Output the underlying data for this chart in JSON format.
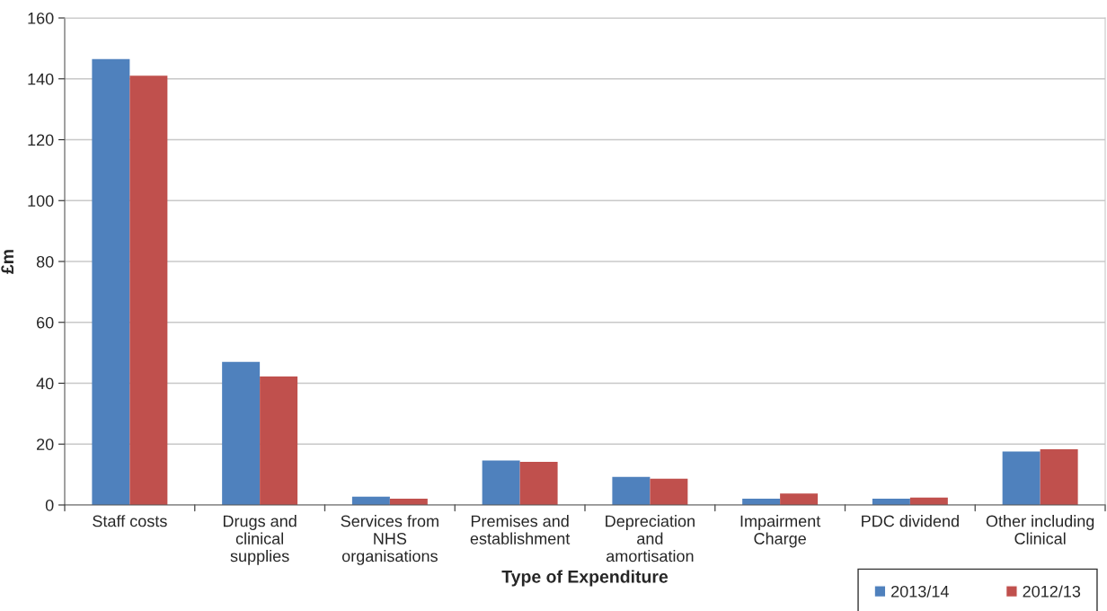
{
  "chart_data": {
    "type": "bar",
    "xlabel": "Type of Expenditure",
    "ylabel": "£m",
    "categories": [
      "Staff costs",
      "Drugs and\nclinical\nsupplies",
      "Services from\nNHS\norganisations",
      "Premises and\nestablishment",
      "Depreciation\nand\namortisation",
      "Impairment\nCharge",
      "PDC dividend",
      "Other including\nClinical"
    ],
    "series": [
      {
        "name": "2013/14",
        "color": "#4f81bd",
        "values": [
          146.5,
          47,
          2.7,
          14.6,
          9.2,
          2.1,
          2.1,
          17.6
        ]
      },
      {
        "name": "2012/13",
        "color": "#c0504d",
        "values": [
          141,
          42.2,
          2.1,
          14.2,
          8.6,
          3.8,
          2.4,
          18.3
        ]
      }
    ],
    "ylim": [
      0,
      160
    ],
    "yticks": [
      0,
      20,
      40,
      60,
      80,
      100,
      120,
      140,
      160
    ],
    "grid": "y",
    "legend": "bottom right"
  }
}
